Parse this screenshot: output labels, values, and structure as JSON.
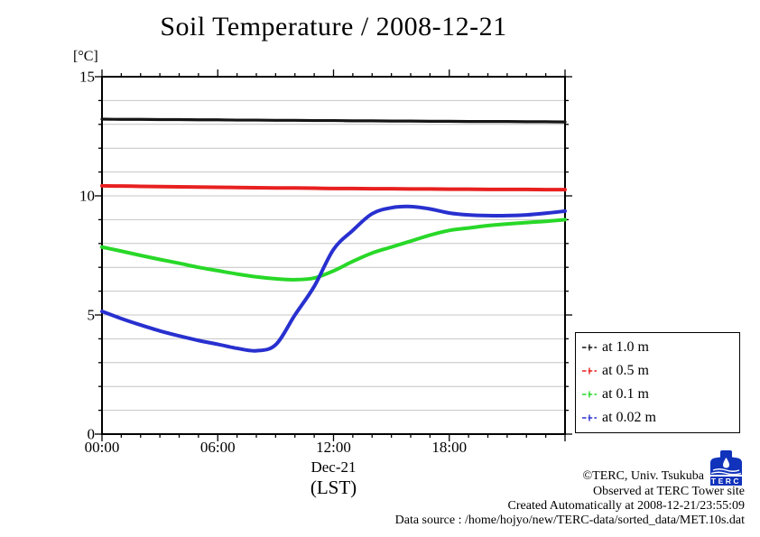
{
  "title": "Soil Temperature / 2008-12-21",
  "y_axis": {
    "unit_label": "[°C]",
    "ticks": [
      "15",
      "10",
      "5",
      "0"
    ]
  },
  "x_axis": {
    "ticks": [
      "00:00",
      "06:00",
      "12:00",
      "18:00"
    ],
    "date_label": "Dec-21",
    "tz_label": "(LST)"
  },
  "legend": {
    "items": [
      {
        "label": "at 1.0 m",
        "color": "#151515"
      },
      {
        "label": "at 0.5 m",
        "color": "#e82020"
      },
      {
        "label": "at 0.1 m",
        "color": "#28d828"
      },
      {
        "label": "at 0.02 m",
        "color": "#2830cf"
      }
    ]
  },
  "credits": {
    "line1": "©TERC, Univ. Tsukuba",
    "line2": "Observed at TERC Tower site",
    "line3": "Created Automatically at 2008-12-21/23:55:09",
    "line4": "Data source : /home/hojyo/new/TERC-data/sorted_data/MET.10s.dat"
  },
  "logo": {
    "text": "TERC",
    "color": "#1133bb"
  },
  "chart_data": {
    "type": "line",
    "title": "Soil Temperature / 2008-12-21",
    "xlabel": "Dec-21 (LST)",
    "ylabel": "[°C]",
    "xlim": [
      0,
      24
    ],
    "ylim": [
      0,
      15
    ],
    "grid": "horizontal-minor-every-1",
    "legend_position": "outside-right-bottom",
    "x_hours": [
      0,
      1,
      2,
      3,
      4,
      5,
      6,
      7,
      8,
      9,
      10,
      11,
      12,
      13,
      14,
      15,
      16,
      17,
      18,
      19,
      20,
      21,
      22,
      23,
      24
    ],
    "xtick_hours": [
      0,
      6,
      12,
      18
    ],
    "ytick_values": [
      0,
      5,
      10,
      15
    ],
    "series": [
      {
        "name": "at 1.0 m",
        "depth_m": 1.0,
        "color": "#151515",
        "values": [
          13.22,
          13.21,
          13.21,
          13.2,
          13.2,
          13.19,
          13.19,
          13.18,
          13.18,
          13.17,
          13.17,
          13.16,
          13.16,
          13.15,
          13.15,
          13.14,
          13.14,
          13.13,
          13.13,
          13.12,
          13.12,
          13.12,
          13.11,
          13.11,
          13.1
        ]
      },
      {
        "name": "at 0.5 m",
        "depth_m": 0.5,
        "color": "#e82020",
        "values": [
          10.42,
          10.41,
          10.4,
          10.39,
          10.38,
          10.37,
          10.36,
          10.35,
          10.34,
          10.33,
          10.33,
          10.32,
          10.31,
          10.31,
          10.3,
          10.3,
          10.29,
          10.29,
          10.28,
          10.28,
          10.27,
          10.27,
          10.27,
          10.26,
          10.26
        ]
      },
      {
        "name": "at 0.1 m",
        "depth_m": 0.1,
        "color": "#28d828",
        "values": [
          7.85,
          7.68,
          7.5,
          7.33,
          7.17,
          7.0,
          6.86,
          6.72,
          6.6,
          6.52,
          6.48,
          6.55,
          6.85,
          7.25,
          7.6,
          7.85,
          8.1,
          8.35,
          8.55,
          8.65,
          8.75,
          8.82,
          8.88,
          8.93,
          9.0
        ]
      },
      {
        "name": "at 0.02 m",
        "depth_m": 0.02,
        "color": "#2830cf",
        "values": [
          5.15,
          4.85,
          4.58,
          4.33,
          4.12,
          3.93,
          3.77,
          3.6,
          3.5,
          3.75,
          5.0,
          6.2,
          7.75,
          8.55,
          9.25,
          9.5,
          9.55,
          9.45,
          9.28,
          9.2,
          9.17,
          9.17,
          9.2,
          9.27,
          9.36
        ]
      }
    ]
  }
}
